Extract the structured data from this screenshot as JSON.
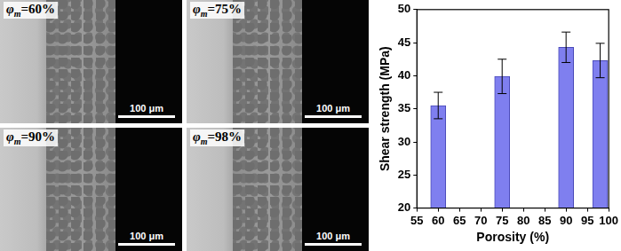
{
  "micrographs": [
    {
      "symbol": "φ",
      "subscript": "m",
      "text": "=60%",
      "scale_bar": "100 μm"
    },
    {
      "symbol": "φ",
      "subscript": "m",
      "text": "=75%",
      "scale_bar": "100 μm"
    },
    {
      "symbol": "φ",
      "subscript": "m",
      "text": "=90%",
      "scale_bar": "100 μm"
    },
    {
      "symbol": "φ",
      "subscript": "m",
      "text": "=98%",
      "scale_bar": "100 μm"
    }
  ],
  "chart_data": {
    "type": "bar",
    "x_label": "Porosity (%)",
    "y_label": "Shear strength (MPa)",
    "x": [
      60,
      75,
      90,
      98
    ],
    "values": [
      35.5,
      39.9,
      44.3,
      42.3
    ],
    "errors": [
      2.0,
      2.6,
      2.3,
      2.6
    ],
    "color": "#7f7fef",
    "xlim": [
      55,
      100
    ],
    "xticks": [
      55,
      60,
      65,
      70,
      75,
      80,
      85,
      90,
      95,
      100
    ],
    "ylim": [
      20,
      50
    ],
    "yticks": [
      20,
      25,
      30,
      35,
      40,
      45,
      50
    ],
    "grid": false
  }
}
